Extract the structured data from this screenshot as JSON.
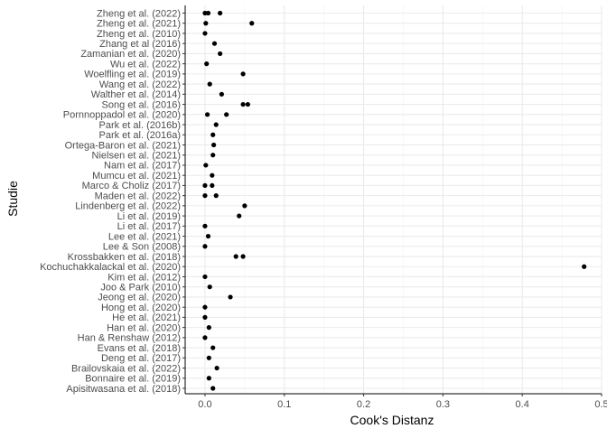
{
  "chart_data": {
    "type": "scatter",
    "title": "",
    "xlabel": "Cook's Distanz",
    "ylabel": "Studie",
    "xlim": [
      -0.025,
      0.5
    ],
    "x_ticks": [
      0.0,
      0.1,
      0.2,
      0.3,
      0.4,
      0.5
    ],
    "x_tick_labels": [
      "0.0",
      "0.1",
      "0.2",
      "0.3",
      "0.4",
      "0.5"
    ],
    "grid": true,
    "point_color": "#000000",
    "categories": [
      "Apisitwasana et al. (2018)",
      "Bonnaire et al. (2019)",
      "Brailovskaia et al. (2022)",
      "Deng et al. (2017)",
      "Evans et al. (2018)",
      "Han & Renshaw (2012)",
      "Han et al. (2020)",
      "He et al. (2021)",
      "Hong et al. (2020)",
      "Jeong et al. (2020)",
      "Joo & Park (2010)",
      "Kim et al. (2012)",
      "Kochuchakkalackal et al. (2020)",
      "Krossbakken et al. (2018)",
      "Lee & Son (2008)",
      "Lee et al. (2021)",
      "Li et al. (2017)",
      "Li et al. (2019)",
      "Lindenberg et al. (2022)",
      "Maden et al. (2022)",
      "Marco & Choliz (2017)",
      "Mumcu et al. (2021)",
      "Nam et al. (2017)",
      "Nielsen et al. (2021)",
      "Ortega-Baron et al. (2021)",
      "Park et al. (2016a)",
      "Park et al. (2016b)",
      "Pornnoppadol et al. (2020)",
      "Song et al. (2016)",
      "Walther et al. (2014)",
      "Wang et al. (2022)",
      "Woelfling et al. (2019)",
      "Wu et al. (2022)",
      "Zamanian et al. (2020)",
      "Zhang et al (2016)",
      "Zheng et al. (2010)",
      "Zheng et al. (2021)",
      "Zheng et al. (2022)"
    ],
    "points": [
      {
        "study": "Apisitwasana et al. (2018)",
        "x": 0.01
      },
      {
        "study": "Bonnaire et al. (2019)",
        "x": 0.005
      },
      {
        "study": "Brailovskaia et al. (2022)",
        "x": 0.015
      },
      {
        "study": "Deng et al. (2017)",
        "x": 0.005
      },
      {
        "study": "Evans et al. (2018)",
        "x": 0.01
      },
      {
        "study": "Han & Renshaw (2012)",
        "x": 0.0
      },
      {
        "study": "Han et al. (2020)",
        "x": 0.005
      },
      {
        "study": "He et al. (2021)",
        "x": 0.0
      },
      {
        "study": "Hong et al. (2020)",
        "x": 0.0
      },
      {
        "study": "Jeong et al. (2020)",
        "x": 0.032
      },
      {
        "study": "Joo & Park (2010)",
        "x": 0.006
      },
      {
        "study": "Kim et al. (2012)",
        "x": 0.0
      },
      {
        "study": "Kochuchakkalackal et al. (2020)",
        "x": 0.478
      },
      {
        "study": "Krossbakken et al. (2018)",
        "x": 0.039
      },
      {
        "study": "Krossbakken et al. (2018)",
        "x": 0.048
      },
      {
        "study": "Lee & Son (2008)",
        "x": 0.0
      },
      {
        "study": "Lee et al. (2021)",
        "x": 0.004
      },
      {
        "study": "Li et al. (2017)",
        "x": 0.0
      },
      {
        "study": "Li et al. (2019)",
        "x": 0.043
      },
      {
        "study": "Lindenberg et al. (2022)",
        "x": 0.05
      },
      {
        "study": "Maden et al. (2022)",
        "x": 0.0
      },
      {
        "study": "Maden et al. (2022)",
        "x": 0.014
      },
      {
        "study": "Marco & Choliz (2017)",
        "x": 0.0
      },
      {
        "study": "Marco & Choliz (2017)",
        "x": 0.009
      },
      {
        "study": "Mumcu et al. (2021)",
        "x": 0.009
      },
      {
        "study": "Nam et al. (2017)",
        "x": 0.001
      },
      {
        "study": "Nielsen et al. (2021)",
        "x": 0.01
      },
      {
        "study": "Ortega-Baron et al. (2021)",
        "x": 0.011
      },
      {
        "study": "Park et al. (2016a)",
        "x": 0.01
      },
      {
        "study": "Park et al. (2016b)",
        "x": 0.014
      },
      {
        "study": "Pornnoppadol et al. (2020)",
        "x": 0.003
      },
      {
        "study": "Pornnoppadol et al. (2020)",
        "x": 0.027
      },
      {
        "study": "Song et al. (2016)",
        "x": 0.048
      },
      {
        "study": "Song et al. (2016)",
        "x": 0.054
      },
      {
        "study": "Walther et al. (2014)",
        "x": 0.021
      },
      {
        "study": "Wang et al. (2022)",
        "x": 0.006
      },
      {
        "study": "Woelfling et al. (2019)",
        "x": 0.048
      },
      {
        "study": "Wu et al. (2022)",
        "x": 0.002
      },
      {
        "study": "Zamanian et al. (2020)",
        "x": 0.019
      },
      {
        "study": "Zhang et al (2016)",
        "x": 0.012
      },
      {
        "study": "Zheng et al. (2010)",
        "x": 0.0
      },
      {
        "study": "Zheng et al. (2021)",
        "x": 0.001
      },
      {
        "study": "Zheng et al. (2021)",
        "x": 0.059
      },
      {
        "study": "Zheng et al. (2022)",
        "x": 0.0
      },
      {
        "study": "Zheng et al. (2022)",
        "x": 0.004
      },
      {
        "study": "Zheng et al. (2022)",
        "x": 0.019
      }
    ]
  }
}
